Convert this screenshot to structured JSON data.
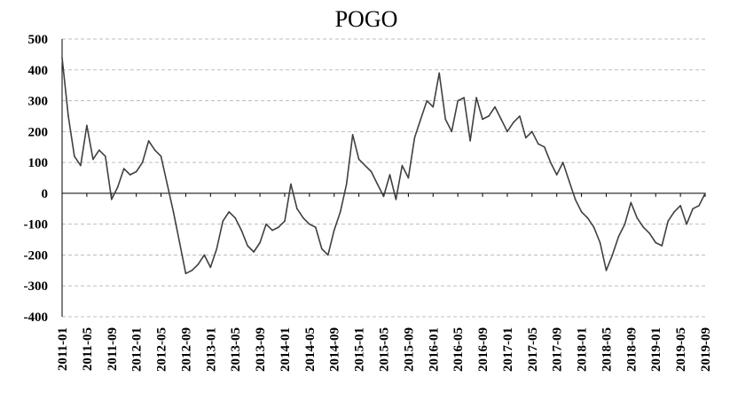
{
  "chart_data": {
    "type": "line",
    "title": "POGO",
    "xlabel": "",
    "ylabel": "",
    "ylim": [
      -400,
      500
    ],
    "y_ticks": [
      500,
      400,
      300,
      200,
      100,
      0,
      -100,
      -200,
      -300,
      -400
    ],
    "x_tick_labels": [
      "2011-01",
      "2011-05",
      "2011-09",
      "2012-01",
      "2012-05",
      "2012-09",
      "2013-01",
      "2013-05",
      "2013-09",
      "2014-01",
      "2014-05",
      "2014-09",
      "2015-01",
      "2015-05",
      "2015-09",
      "2016-01",
      "2016-05",
      "2016-09",
      "2017-01",
      "2017-05",
      "2017-09",
      "2018-01",
      "2018-05",
      "2018-09",
      "2019-01",
      "2019-05",
      "2019-09"
    ],
    "grid": true,
    "legend": "none",
    "colors": {
      "line": "#404040",
      "grid": "#bdbdbd"
    },
    "series": [
      {
        "x": [
          "2011-01",
          "2011-02",
          "2011-03",
          "2011-04",
          "2011-05",
          "2011-06",
          "2011-07",
          "2011-08",
          "2011-09",
          "2011-10",
          "2011-11",
          "2011-12",
          "2012-01",
          "2012-02",
          "2012-03",
          "2012-04",
          "2012-05",
          "2012-06",
          "2012-07",
          "2012-08",
          "2012-09",
          "2012-10",
          "2012-11",
          "2012-12",
          "2013-01",
          "2013-02",
          "2013-03",
          "2013-04",
          "2013-05",
          "2013-06",
          "2013-07",
          "2013-08",
          "2013-09",
          "2013-10",
          "2013-11",
          "2013-12",
          "2014-01",
          "2014-02",
          "2014-03",
          "2014-04",
          "2014-05",
          "2014-06",
          "2014-07",
          "2014-08",
          "2014-09",
          "2014-10",
          "2014-11",
          "2014-12",
          "2015-01",
          "2015-02",
          "2015-03",
          "2015-04",
          "2015-05",
          "2015-06",
          "2015-07",
          "2015-08",
          "2015-09",
          "2015-10",
          "2015-11",
          "2015-12",
          "2016-01",
          "2016-02",
          "2016-03",
          "2016-04",
          "2016-05",
          "2016-06",
          "2016-07",
          "2016-08",
          "2016-09",
          "2016-10",
          "2016-11",
          "2016-12",
          "2017-01",
          "2017-02",
          "2017-03",
          "2017-04",
          "2017-05",
          "2017-06",
          "2017-07",
          "2017-08",
          "2017-09",
          "2017-10",
          "2017-11",
          "2017-12",
          "2018-01",
          "2018-02",
          "2018-03",
          "2018-04",
          "2018-05",
          "2018-06",
          "2018-07",
          "2018-08",
          "2018-09",
          "2018-10",
          "2018-11",
          "2018-12",
          "2019-01",
          "2019-02",
          "2019-03",
          "2019-04",
          "2019-05",
          "2019-06",
          "2019-07",
          "2019-08",
          "2019-09"
        ],
        "values": [
          440,
          250,
          120,
          90,
          220,
          110,
          140,
          120,
          -20,
          20,
          80,
          60,
          70,
          100,
          170,
          140,
          120,
          30,
          -60,
          -160,
          -260,
          -250,
          -230,
          -200,
          -240,
          -180,
          -90,
          -60,
          -80,
          -120,
          -170,
          -190,
          -160,
          -100,
          -120,
          -110,
          -90,
          30,
          -50,
          -80,
          -100,
          -110,
          -180,
          -200,
          -120,
          -60,
          30,
          190,
          110,
          90,
          70,
          30,
          -10,
          60,
          -20,
          90,
          50,
          180,
          240,
          300,
          280,
          390,
          240,
          200,
          300,
          310,
          170,
          310,
          240,
          250,
          280,
          240,
          200,
          230,
          250,
          180,
          200,
          160,
          150,
          100,
          60,
          100,
          40,
          -20,
          -60,
          -80,
          -110,
          -160,
          -250,
          -200,
          -140,
          -100,
          -30,
          -80,
          -110,
          -130,
          -160,
          -170,
          -90,
          -60,
          -40,
          -100,
          -50,
          -40,
          0
        ]
      }
    ]
  }
}
